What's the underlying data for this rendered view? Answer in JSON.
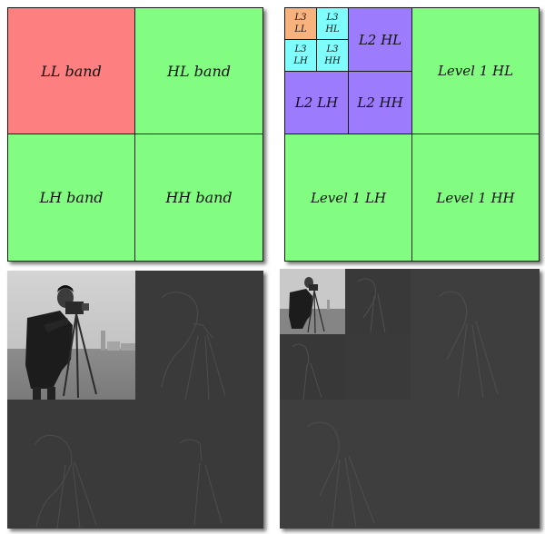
{
  "colors": {
    "ll": "#fd7f7f",
    "detail": "#82fd82",
    "level2": "#9d7bfd",
    "level3": "#7ffdfd",
    "l3ll": "#f8b27d",
    "coef_bg": "#3a3a3a"
  },
  "one_level": {
    "ll": "LL band",
    "hl": "HL band",
    "lh": "LH band",
    "hh": "HH band"
  },
  "three_level": {
    "l3ll_a": "L3",
    "l3ll_b": "LL",
    "l3hl_a": "L3",
    "l3hl_b": "HL",
    "l3lh_a": "L3",
    "l3lh_b": "LH",
    "l3hh_a": "L3",
    "l3hh_b": "HH",
    "l2hl": "L2 HL",
    "l2lh": "L2 LH",
    "l2hh": "L2 HH",
    "l1hl": "Level 1 HL",
    "l1lh": "Level 1 LH",
    "l1hh": "Level 1 HH"
  }
}
